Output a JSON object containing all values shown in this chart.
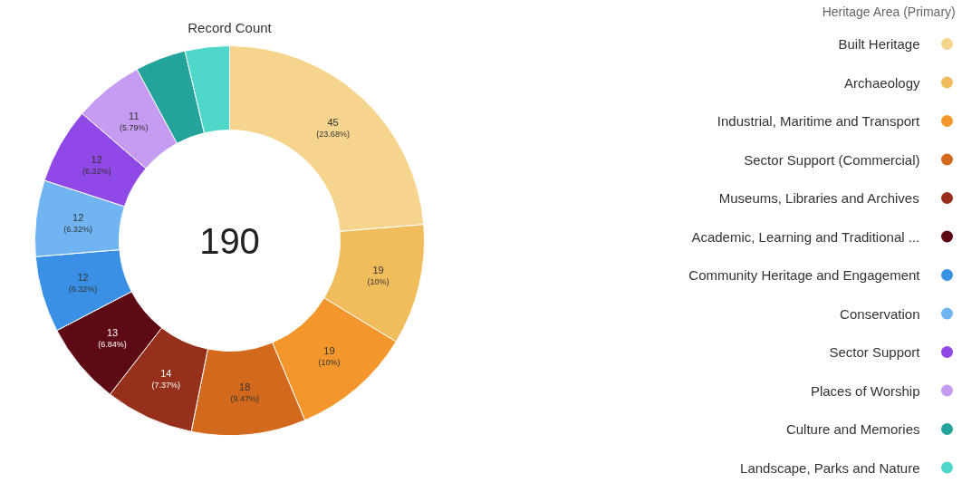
{
  "chart_data": {
    "type": "donut",
    "title": "Record Count",
    "legend_title": "Heritage Area (Primary)",
    "legend": "right",
    "categories": [
      "Built Heritage",
      "Archaeology",
      "Industrial, Maritime and Transport",
      "Sector Support (Commercial)",
      "Museums, Libraries and Archives",
      "Academic, Learning and Traditional ...",
      "Community Heritage and Engagement",
      "Conservation",
      "Sector Support",
      "Places of Worship",
      "Culture and Memories",
      "Landscape, Parks and Nature"
    ],
    "values": [
      45,
      19,
      19,
      18,
      14,
      13,
      12,
      12,
      12,
      11,
      8,
      7
    ],
    "colors": [
      "#f5d48e",
      "#f1bd5c",
      "#f3962c",
      "#d2691c",
      "#96301a",
      "#5e0a14",
      "#3a90e4",
      "#70b4f2",
      "#9048e6",
      "#c69bf2",
      "#23a39a",
      "#4ed6c9"
    ],
    "value_labels": [
      "45\n(23.68%)",
      "19\n(10%)",
      "19\n(10%)",
      "18\n(9.47%)",
      "14\n(7.37%)",
      "13\n(6.84%)",
      "12\n(6.32%)",
      "12\n(6.32%)",
      "12\n(6.32%)",
      "11\n(5.79%)",
      null,
      null
    ],
    "annotations": [
      "190"
    ]
  }
}
